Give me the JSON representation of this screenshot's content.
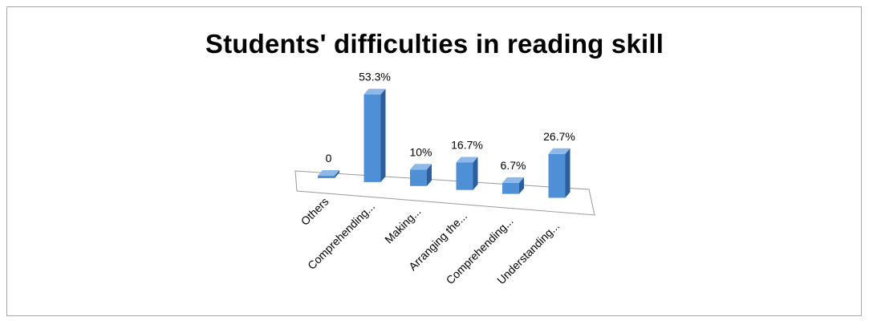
{
  "chart_data": {
    "type": "bar",
    "title": "Students' difficulties in reading skill",
    "categories": [
      "Others",
      "Comprehending...",
      "Making...",
      "Arranging the...",
      "Comprehending...",
      "Understanding..."
    ],
    "values": [
      0,
      53.3,
      10,
      16.7,
      6.7,
      26.7
    ],
    "data_labels": [
      "0",
      "53.3%",
      "10%",
      "16.7%",
      "6.7%",
      "26.7%"
    ],
    "unit": "%",
    "style": "3d-column",
    "grid": false,
    "legend": "none",
    "colors": {
      "bar_front": "#4f8fd6",
      "bar_top": "#8db8e8",
      "bar_side": "#2e5f9c",
      "floor_stroke": "#9a9a9a",
      "frame_border": "#a6a6a6"
    }
  }
}
